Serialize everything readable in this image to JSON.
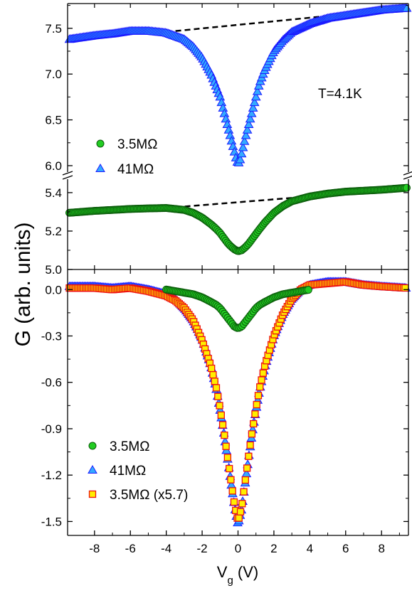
{
  "chart_data": {
    "type": "scatter",
    "xlabel_main": "V",
    "xlabel_sub": "g",
    "xlabel_unit": " (V)",
    "ylabel": "G (arb. units)",
    "xlim": [
      -9.5,
      9.5
    ],
    "xticks": [
      -8,
      -6,
      -4,
      -2,
      0,
      2,
      4,
      6,
      8
    ],
    "xtick_labels": [
      "-8",
      "-6",
      "-4",
      "-2",
      "0",
      "2",
      "4",
      "6",
      "8"
    ],
    "panels": [
      {
        "name": "top",
        "segments": [
          {
            "name": "upper",
            "ylim": [
              5.93,
              7.77
            ],
            "yticks": [
              6.0,
              6.5,
              7.0,
              7.5
            ],
            "ytick_labels": [
              "6.0",
              "6.5",
              "7.0",
              "7.5"
            ]
          },
          {
            "name": "lower",
            "ylim": [
              5.0,
              5.47
            ],
            "yticks": [
              5.0,
              5.2,
              5.4
            ],
            "ytick_labels": [
              "5.0",
              "5.2",
              "5.4"
            ]
          }
        ],
        "annotation": "T=4.1K",
        "series": [
          {
            "name": "41MΩ",
            "segment": "upper",
            "marker": "triangle",
            "fill": "#33aaff",
            "stroke": "#1a1aff",
            "x": [
              -9.4,
              -8,
              -7,
              -6,
              -5,
              -4,
              -3,
              -2.5,
              -2,
              -1.5,
              -1.2,
              -1,
              -0.8,
              -0.6,
              -0.4,
              -0.2,
              -0.1,
              0,
              0.1,
              0.2,
              0.4,
              0.6,
              0.8,
              1,
              1.2,
              1.5,
              2,
              2.5,
              3,
              4,
              5,
              6,
              7,
              8,
              9.4
            ],
            "y": [
              7.38,
              7.42,
              7.44,
              7.47,
              7.47,
              7.45,
              7.38,
              7.3,
              7.18,
              7.0,
              6.85,
              6.75,
              6.6,
              6.45,
              6.3,
              6.15,
              6.07,
              6.02,
              6.05,
              6.13,
              6.3,
              6.45,
              6.6,
              6.75,
              6.9,
              7.05,
              7.25,
              7.37,
              7.46,
              7.55,
              7.61,
              7.64,
              7.67,
              7.7,
              7.72
            ]
          },
          {
            "name": "3.5MΩ",
            "segment": "lower",
            "marker": "circle",
            "fill": "#22cc22",
            "stroke": "#0a5a0a",
            "x": [
              -9.4,
              -8,
              -7,
              -6,
              -5,
              -4,
              -3,
              -2.5,
              -2,
              -1.5,
              -1.2,
              -1,
              -0.8,
              -0.6,
              -0.4,
              -0.2,
              0,
              0.2,
              0.4,
              0.6,
              0.8,
              1,
              1.2,
              1.5,
              2,
              2.5,
              3,
              4,
              5,
              6,
              7,
              8,
              9.4
            ],
            "y": [
              5.295,
              5.305,
              5.31,
              5.315,
              5.318,
              5.32,
              5.31,
              5.295,
              5.27,
              5.235,
              5.21,
              5.19,
              5.165,
              5.14,
              5.12,
              5.105,
              5.095,
              5.1,
              5.115,
              5.135,
              5.16,
              5.185,
              5.21,
              5.245,
              5.295,
              5.33,
              5.355,
              5.38,
              5.395,
              5.405,
              5.41,
              5.415,
              5.425
            ]
          }
        ],
        "baselines": [
          {
            "segment": "upper",
            "x": [
              -4,
              9.4
            ],
            "y": [
              7.46,
              7.72
            ]
          },
          {
            "segment": "lower",
            "x": [
              -4,
              4
            ],
            "y": [
              5.32,
              5.38
            ]
          }
        ],
        "legend": {
          "placement": "lower-left",
          "entries": [
            {
              "label": "3.5MΩ",
              "series": "3.5MΩ"
            },
            {
              "label": "41MΩ",
              "series": "41MΩ"
            }
          ]
        }
      },
      {
        "name": "bottom",
        "ylim": [
          -1.59,
          0.13
        ],
        "yticks": [
          0.0,
          -0.3,
          -0.6,
          -0.9,
          -1.2,
          -1.5
        ],
        "ytick_labels": [
          "0.0",
          "-0.3",
          "-0.6",
          "-0.9",
          "-1.2",
          "-1.5"
        ],
        "series": [
          {
            "name": "41MΩ",
            "marker": "triangle",
            "fill": "#33aaff",
            "stroke": "#1a1aff",
            "x": [
              -9.4,
              -8,
              -7,
              -6,
              -5,
              -4,
              -3.5,
              -3,
              -2.5,
              -2,
              -1.5,
              -1.2,
              -1,
              -0.8,
              -0.6,
              -0.4,
              -0.2,
              0,
              0.2,
              0.4,
              0.6,
              0.8,
              1,
              1.2,
              1.5,
              2,
              2.5,
              3,
              3.5,
              4,
              5,
              6,
              7,
              8,
              9.4
            ],
            "y": [
              0.02,
              0.02,
              0.01,
              0.02,
              0.0,
              -0.03,
              -0.06,
              -0.12,
              -0.2,
              -0.32,
              -0.5,
              -0.65,
              -0.78,
              -0.92,
              -1.08,
              -1.24,
              -1.4,
              -1.52,
              -1.42,
              -1.25,
              -1.08,
              -0.92,
              -0.78,
              -0.65,
              -0.5,
              -0.3,
              -0.16,
              -0.06,
              0.0,
              0.03,
              0.05,
              0.05,
              0.03,
              0.02,
              0.01
            ]
          },
          {
            "name": "3.5MΩ (x5.7)",
            "marker": "square",
            "fill": "#ffee00",
            "stroke": "#ee1111",
            "x": [
              -9.4,
              -8,
              -7,
              -6,
              -5,
              -4,
              -3.5,
              -3,
              -2.5,
              -2,
              -1.5,
              -1.2,
              -1,
              -0.8,
              -0.6,
              -0.4,
              -0.2,
              0,
              0.2,
              0.4,
              0.6,
              0.8,
              1,
              1.2,
              1.5,
              2,
              2.5,
              3,
              3.5,
              4,
              5,
              6,
              7,
              8,
              9.4
            ],
            "y": [
              0.01,
              0.01,
              0.0,
              0.01,
              -0.01,
              -0.04,
              -0.07,
              -0.12,
              -0.2,
              -0.33,
              -0.5,
              -0.64,
              -0.77,
              -0.91,
              -1.07,
              -1.23,
              -1.39,
              -1.5,
              -1.41,
              -1.24,
              -1.07,
              -0.91,
              -0.77,
              -0.64,
              -0.49,
              -0.3,
              -0.16,
              -0.06,
              0.0,
              0.03,
              0.04,
              0.05,
              0.03,
              0.02,
              0.01
            ]
          },
          {
            "name": "3.5MΩ",
            "marker": "circle",
            "fill": "#22cc22",
            "stroke": "#0a5a0a",
            "x": [
              -4,
              -3,
              -2.5,
              -2,
              -1.5,
              -1.2,
              -1,
              -0.8,
              -0.6,
              -0.4,
              -0.2,
              0,
              0.2,
              0.4,
              0.6,
              0.8,
              1,
              1.2,
              1.5,
              2,
              2.5,
              3,
              4
            ],
            "y": [
              0.0,
              -0.02,
              -0.03,
              -0.05,
              -0.08,
              -0.1,
              -0.12,
              -0.15,
              -0.18,
              -0.21,
              -0.24,
              -0.25,
              -0.24,
              -0.21,
              -0.18,
              -0.15,
              -0.12,
              -0.1,
              -0.08,
              -0.05,
              -0.03,
              -0.02,
              0.0
            ]
          }
        ],
        "legend": {
          "placement": "lower-left",
          "entries": [
            {
              "label": "3.5MΩ",
              "series": "3.5MΩ"
            },
            {
              "label": "41MΩ",
              "series": "41MΩ"
            },
            {
              "label": "3.5MΩ (x5.7)",
              "series": "3.5MΩ (x5.7)"
            }
          ]
        }
      }
    ]
  }
}
